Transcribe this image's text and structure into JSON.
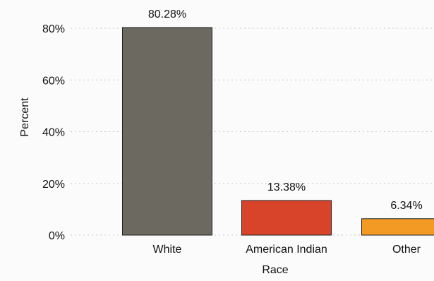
{
  "chart_data": {
    "type": "bar",
    "title": "",
    "xlabel": "Race",
    "ylabel": "Percent",
    "categories": [
      "White",
      "American Indian",
      "Other"
    ],
    "values": [
      80.28,
      13.38,
      6.34
    ],
    "value_labels": [
      "80.28%",
      "13.38%",
      "6.34%"
    ],
    "ylim": [
      0,
      80
    ],
    "yticks": [
      {
        "value": 0,
        "label": "0%"
      },
      {
        "value": 20,
        "label": "20%"
      },
      {
        "value": 40,
        "label": "40%"
      },
      {
        "value": 60,
        "label": "60%"
      },
      {
        "value": 80,
        "label": "80%"
      }
    ],
    "colors": [
      "#6b6960",
      "#d8442a",
      "#f39a25"
    ],
    "grid": true,
    "legend": "none"
  }
}
